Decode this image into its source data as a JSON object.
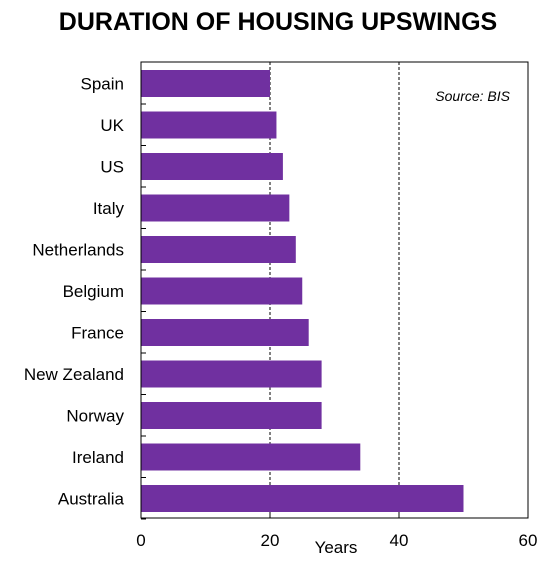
{
  "colors": {
    "bar": "#7030A0",
    "axis": "#000000",
    "grid": "#000000"
  },
  "chart_data": {
    "type": "bar",
    "orientation": "horizontal",
    "title": "DURATION OF HOUSING UPSWINGS",
    "source": "Source: BIS",
    "xlabel": "Years",
    "ylabel": "",
    "categories": [
      "Spain",
      "UK",
      "US",
      "Italy",
      "Netherlands",
      "Belgium",
      "France",
      "New Zealand",
      "Norway",
      "Ireland",
      "Australia"
    ],
    "values": [
      20,
      21,
      22,
      23,
      24,
      25,
      26,
      28,
      28,
      34,
      50
    ],
    "xlim": [
      0,
      60
    ],
    "xticks": [
      0,
      20,
      40,
      60
    ],
    "gridlines": [
      20,
      40
    ],
    "grid_style": "dashed",
    "legend": "none"
  }
}
